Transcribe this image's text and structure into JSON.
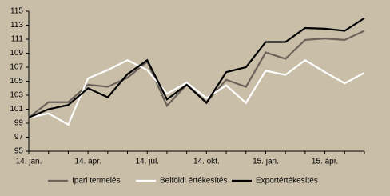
{
  "chart_data": {
    "type": "line",
    "categories": [
      "14. jan.",
      null,
      null,
      "14. ápr.",
      null,
      null,
      "14. júl.",
      null,
      null,
      "14. okt.",
      null,
      null,
      "15. jan.",
      null,
      null,
      "15. ápr.",
      null,
      null
    ],
    "series": [
      {
        "name": "Ipari termelés",
        "color": "#6b625a",
        "values": [
          99.8,
          102,
          102,
          104.5,
          104.2,
          105.5,
          107.8,
          101.5,
          104.5,
          102,
          105.2,
          104.2,
          109.1,
          108.2,
          110.9,
          111.1,
          110.9,
          112.2
        ]
      },
      {
        "name": "Belföldi értékesítés",
        "color": "#ffffff",
        "values": [
          99.8,
          100.4,
          98.8,
          105.4,
          106.6,
          108,
          106.6,
          103.2,
          104.8,
          102.6,
          104.4,
          101.9,
          106.5,
          105.9,
          108,
          106.3,
          104.7,
          106.2
        ]
      },
      {
        "name": "Exportértékesítés",
        "color": "#000000",
        "values": [
          99.8,
          101,
          101.6,
          104,
          102.7,
          106,
          108,
          102.4,
          104.5,
          101.9,
          106.3,
          107,
          110.6,
          110.6,
          112.6,
          112.5,
          112.2,
          114
        ]
      }
    ],
    "ylim": [
      95,
      115
    ],
    "yticks": [
      95,
      97,
      99,
      101,
      103,
      105,
      107,
      109,
      111,
      113,
      115
    ],
    "grid": false,
    "legend": "bottom"
  }
}
